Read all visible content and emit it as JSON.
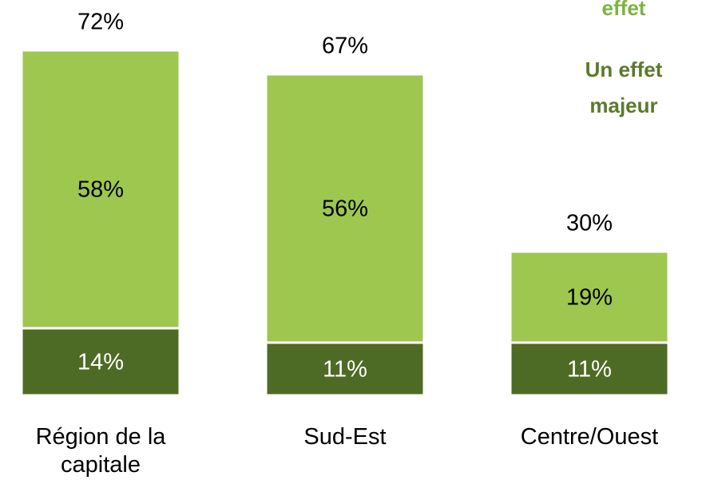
{
  "chart_data": {
    "type": "stacked-bar",
    "categories": [
      "Région de la capitale",
      "Sud-Est",
      "Centre/Ouest"
    ],
    "series": [
      {
        "name": "Un effet majeur",
        "color": "#4e6b25",
        "label_color": "#5b7a2c",
        "values": [
          14,
          11,
          11
        ],
        "value_labels": [
          "14%",
          "11%",
          "11%"
        ]
      },
      {
        "name": "effet",
        "color": "#9dc74f",
        "label_color": "#7eb33e",
        "values": [
          58,
          56,
          19
        ],
        "value_labels": [
          "58%",
          "56%",
          "19%"
        ]
      }
    ],
    "totals": {
      "values": [
        72,
        67,
        30
      ],
      "value_labels": [
        "72%",
        "67%",
        "30%"
      ]
    }
  }
}
